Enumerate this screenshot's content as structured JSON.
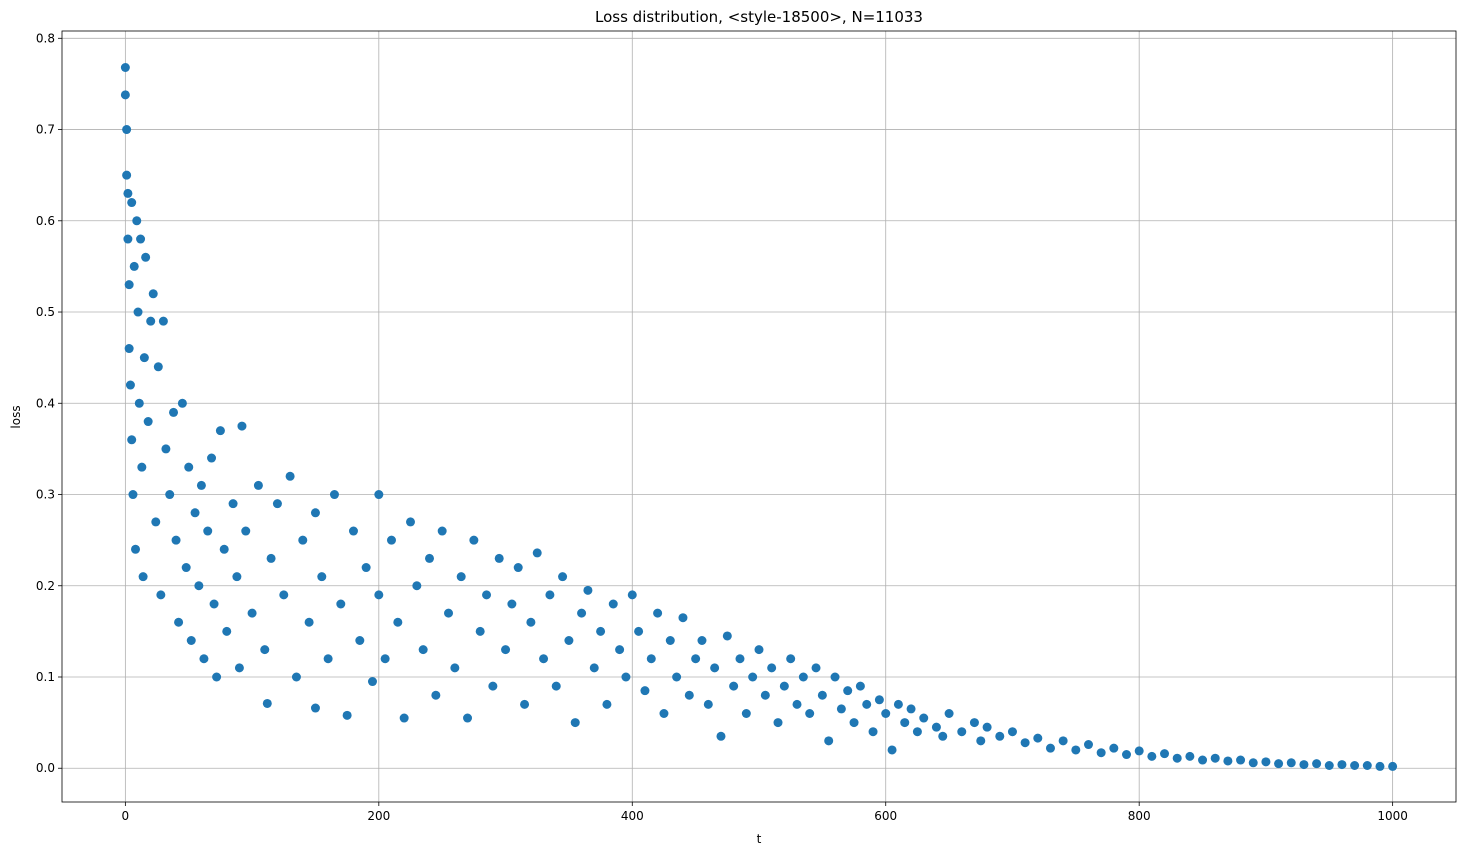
{
  "chart_data": {
    "type": "scatter",
    "title": "Loss distribution, <style-18500>, N=11033",
    "xlabel": "t",
    "ylabel": "loss",
    "color": "#1f77b4",
    "grid": true,
    "xlim": [
      -50,
      1050
    ],
    "ylim": [
      -0.037,
      0.808
    ],
    "xticks": [
      0,
      200,
      400,
      600,
      800,
      1000
    ],
    "yticks": [
      {
        "value": 0,
        "label": "0.0"
      },
      0.1,
      0.2,
      0.3,
      0.4,
      0.5,
      0.6,
      0.7,
      0.8
    ],
    "x": [
      0,
      0,
      1,
      1,
      2,
      2,
      3,
      3,
      4,
      5,
      5,
      6,
      7,
      8,
      9,
      10,
      11,
      12,
      13,
      14,
      15,
      16,
      18,
      20,
      22,
      24,
      26,
      28,
      30,
      32,
      35,
      38,
      40,
      42,
      45,
      48,
      50,
      52,
      55,
      58,
      60,
      62,
      65,
      68,
      70,
      72,
      75,
      78,
      80,
      85,
      88,
      90,
      92,
      95,
      100,
      105,
      110,
      112,
      115,
      120,
      125,
      130,
      135,
      140,
      145,
      150,
      150,
      155,
      160,
      165,
      170,
      175,
      180,
      185,
      190,
      195,
      200,
      200,
      205,
      210,
      215,
      220,
      225,
      230,
      235,
      240,
      245,
      250,
      255,
      260,
      265,
      270,
      275,
      280,
      285,
      290,
      295,
      300,
      305,
      310,
      315,
      320,
      325,
      330,
      335,
      340,
      345,
      350,
      355,
      360,
      365,
      370,
      375,
      380,
      385,
      390,
      395,
      400,
      405,
      410,
      415,
      420,
      425,
      430,
      435,
      440,
      445,
      450,
      455,
      460,
      465,
      470,
      475,
      480,
      485,
      490,
      495,
      500,
      505,
      510,
      515,
      520,
      525,
      530,
      535,
      540,
      545,
      550,
      555,
      560,
      565,
      570,
      575,
      580,
      585,
      590,
      595,
      600,
      605,
      610,
      615,
      620,
      625,
      630,
      640,
      645,
      650,
      660,
      670,
      675,
      680,
      690,
      700,
      710,
      720,
      730,
      740,
      750,
      760,
      770,
      780,
      790,
      800,
      810,
      820,
      830,
      840,
      850,
      860,
      870,
      880,
      890,
      900,
      910,
      920,
      930,
      940,
      950,
      960,
      970,
      980,
      990,
      1000
    ],
    "values": [
      0.768,
      0.738,
      0.7,
      0.65,
      0.63,
      0.58,
      0.53,
      0.46,
      0.42,
      0.36,
      0.62,
      0.3,
      0.55,
      0.24,
      0.6,
      0.5,
      0.4,
      0.58,
      0.33,
      0.21,
      0.45,
      0.56,
      0.38,
      0.49,
      0.52,
      0.27,
      0.44,
      0.19,
      0.49,
      0.35,
      0.3,
      0.39,
      0.25,
      0.16,
      0.4,
      0.22,
      0.33,
      0.14,
      0.28,
      0.2,
      0.31,
      0.12,
      0.26,
      0.34,
      0.18,
      0.1,
      0.37,
      0.24,
      0.15,
      0.29,
      0.21,
      0.11,
      0.375,
      0.26,
      0.17,
      0.31,
      0.13,
      0.071,
      0.23,
      0.29,
      0.19,
      0.32,
      0.1,
      0.25,
      0.16,
      0.066,
      0.28,
      0.21,
      0.12,
      0.3,
      0.18,
      0.058,
      0.26,
      0.14,
      0.22,
      0.095,
      0.3,
      0.19,
      0.12,
      0.25,
      0.16,
      0.055,
      0.27,
      0.2,
      0.13,
      0.23,
      0.08,
      0.26,
      0.17,
      0.11,
      0.21,
      0.055,
      0.25,
      0.15,
      0.19,
      0.09,
      0.23,
      0.13,
      0.18,
      0.22,
      0.07,
      0.16,
      0.236,
      0.12,
      0.19,
      0.09,
      0.21,
      0.14,
      0.05,
      0.17,
      0.195,
      0.11,
      0.15,
      0.07,
      0.18,
      0.13,
      0.1,
      0.19,
      0.15,
      0.085,
      0.12,
      0.17,
      0.06,
      0.14,
      0.1,
      0.165,
      0.08,
      0.12,
      0.14,
      0.07,
      0.11,
      0.035,
      0.145,
      0.09,
      0.12,
      0.06,
      0.1,
      0.13,
      0.08,
      0.11,
      0.05,
      0.09,
      0.12,
      0.07,
      0.1,
      0.06,
      0.11,
      0.08,
      0.03,
      0.1,
      0.065,
      0.085,
      0.05,
      0.09,
      0.07,
      0.04,
      0.075,
      0.06,
      0.02,
      0.07,
      0.05,
      0.065,
      0.04,
      0.055,
      0.045,
      0.035,
      0.06,
      0.04,
      0.05,
      0.03,
      0.045,
      0.035,
      0.04,
      0.028,
      0.033,
      0.022,
      0.03,
      0.02,
      0.026,
      0.017,
      0.022,
      0.015,
      0.019,
      0.013,
      0.016,
      0.011,
      0.013,
      0.009,
      0.011,
      0.008,
      0.009,
      0.006,
      0.007,
      0.005,
      0.006,
      0.004,
      0.005,
      0.003,
      0.004,
      0.003,
      0.003,
      0.002,
      0.002
    ]
  }
}
